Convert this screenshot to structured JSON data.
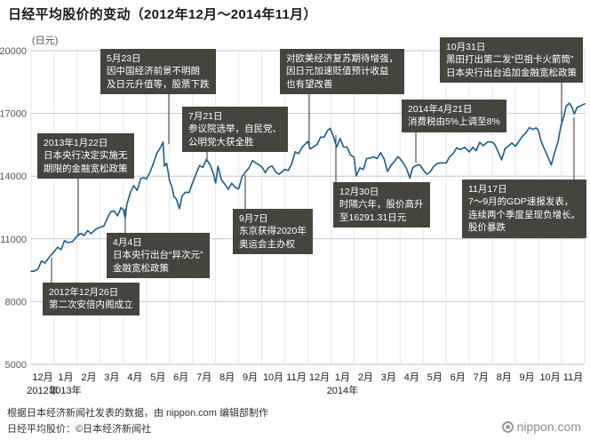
{
  "title": "日经平均股价的变动（2012年12月～2014年11月）",
  "colors": {
    "line": "#1b5c8c",
    "annotation_bg": "#45453e",
    "annotation_text": "#ffffff",
    "grid": "#c6c6c6",
    "subgrid": "#e7e7e7",
    "connector": "#333333",
    "axis_text": "#555555",
    "tick_text": "#1a1a1a",
    "title_text": "#1a1a1a"
  },
  "footer": {
    "source_line": "根据日本经济新闻社发表的数据，由 nippon.com 编辑部制作",
    "copyright_line": "日经平均股价：©日本经济新闻社",
    "logo_text": "nippon.com"
  },
  "annotations": [
    {
      "id": "abe-cabinet",
      "lines": [
        "2012年12月26日",
        "第二次安倍内阁成立"
      ]
    },
    {
      "id": "boj-unlimited-easing",
      "lines": [
        "2013年1月22日",
        "日本央行决定实施无",
        "期限的金融宽松政策"
      ]
    },
    {
      "id": "boj-dimension-easing",
      "lines": [
        "4月4日",
        "日本央行出台“异次元”",
        "金融宽松政策"
      ]
    },
    {
      "id": "may23-drop",
      "lines": [
        "5月23日",
        "因中国经济前景不明朗",
        "及日元升值等，股票下跌"
      ]
    },
    {
      "id": "upper-house-election",
      "lines": [
        "7月21日",
        "参议院选举，自民党、",
        "公明党大获全胜"
      ]
    },
    {
      "id": "tokyo-olympics",
      "lines": [
        "9月7日",
        "东京获得2020年",
        "奥运会主办权"
      ]
    },
    {
      "id": "yen-depreciation",
      "lines": [
        "对欧美经济复苏期待增强，",
        "因日元加速贬值预计收益",
        "也有望改善"
      ]
    },
    {
      "id": "dec30-high",
      "lines": [
        "12月30日",
        "时隔六年，股价高升",
        "至16291.31日元"
      ]
    },
    {
      "id": "consumption-tax",
      "lines": [
        "2014年4月21日",
        "消费税由5%上调至8%"
      ]
    },
    {
      "id": "bazooka2",
      "lines": [
        "10月31日",
        "黑田打出第二发“巴祖卡火箭筒”",
        "日本央行出台追加金融宽松政策"
      ]
    },
    {
      "id": "gdp-drop",
      "lines": [
        "11月17日",
        "7～9月的GDP速报发表，",
        "连续两个季度呈现负增长。",
        "股价暴跌"
      ]
    }
  ],
  "chart_data": {
    "type": "line",
    "title": "日经平均股价的变动（2012年12月～2014年11月）",
    "unit_label": "(日元)",
    "ylabel": "日元",
    "ylim": [
      5000,
      20000
    ],
    "yticks": [
      5000,
      8000,
      11000,
      14000,
      17000,
      20000
    ],
    "x_note": "month offset: 0 = 2012年12月初, 24 = 2014年11月末",
    "x_months": [
      "12月",
      "1月",
      "2月",
      "3月",
      "4月",
      "5月",
      "6月",
      "7月",
      "8月",
      "9月",
      "10月",
      "11月",
      "12月",
      "1月",
      "2月",
      "3月",
      "4月",
      "5月",
      "6月",
      "7月",
      "8月",
      "9月",
      "10月",
      "11月"
    ],
    "year_markers": [
      {
        "label": "2012年",
        "month_index": 0
      },
      {
        "label": "2013年",
        "month_index": 1
      },
      {
        "label": "2014年",
        "month_index": 13
      }
    ],
    "series": [
      {
        "name": "日经平均股价",
        "color": "#1b5c8c",
        "points": [
          [
            0,
            9450
          ],
          [
            0.15,
            9458
          ],
          [
            0.3,
            9560
          ],
          [
            0.45,
            9940
          ],
          [
            0.6,
            9840
          ],
          [
            0.75,
            10080
          ],
          [
            0.87,
            10230
          ],
          [
            1,
            10395
          ],
          [
            1.15,
            10600
          ],
          [
            1.3,
            10486
          ],
          [
            1.45,
            10913
          ],
          [
            1.6,
            10820
          ],
          [
            1.8,
            10870
          ],
          [
            2,
            11139
          ],
          [
            2.15,
            11260
          ],
          [
            2.3,
            11160
          ],
          [
            2.45,
            11400
          ],
          [
            2.6,
            11250
          ],
          [
            2.8,
            11460
          ],
          [
            3,
            11559
          ],
          [
            3.15,
            11606
          ],
          [
            3.3,
            11980
          ],
          [
            3.45,
            12300
          ],
          [
            3.6,
            12338
          ],
          [
            3.75,
            12100
          ],
          [
            3.9,
            12490
          ],
          [
            4,
            12398
          ],
          [
            4.08,
            12003
          ],
          [
            4.15,
            12634
          ],
          [
            4.3,
            13200
          ],
          [
            4.45,
            13550
          ],
          [
            4.6,
            13316
          ],
          [
            4.75,
            13884
          ],
          [
            4.9,
            13926
          ],
          [
            5,
            13860
          ],
          [
            5.15,
            14180
          ],
          [
            5.3,
            14607
          ],
          [
            5.45,
            15096
          ],
          [
            5.6,
            15354
          ],
          [
            5.72,
            15627
          ],
          [
            5.78,
            14483
          ],
          [
            5.88,
            14612
          ],
          [
            6,
            13775
          ],
          [
            6.1,
            13515
          ],
          [
            6.2,
            13014
          ],
          [
            6.3,
            12904
          ],
          [
            6.43,
            12445
          ],
          [
            6.55,
            13057
          ],
          [
            6.7,
            13230
          ],
          [
            6.85,
            13213
          ],
          [
            7,
            13677
          ],
          [
            7.15,
            14098
          ],
          [
            7.3,
            14506
          ],
          [
            7.45,
            14416
          ],
          [
            7.6,
            14808
          ],
          [
            7.75,
            14562
          ],
          [
            7.9,
            14130
          ],
          [
            8,
            13668
          ],
          [
            8.1,
            14466
          ],
          [
            8.25,
            13825
          ],
          [
            8.4,
            13615
          ],
          [
            8.55,
            13365
          ],
          [
            8.7,
            13660
          ],
          [
            8.85,
            13459
          ],
          [
            9,
            13389
          ],
          [
            9.15,
            13978
          ],
          [
            9.3,
            14205
          ],
          [
            9.45,
            14404
          ],
          [
            9.6,
            14742
          ],
          [
            9.75,
            14620
          ],
          [
            10,
            14456
          ],
          [
            10.15,
            14170
          ],
          [
            10.3,
            14426
          ],
          [
            10.45,
            14486
          ],
          [
            10.6,
            14202
          ],
          [
            10.75,
            14088
          ],
          [
            11,
            14328
          ],
          [
            11.15,
            14269
          ],
          [
            11.3,
            14588
          ],
          [
            11.45,
            15165
          ],
          [
            11.6,
            15077
          ],
          [
            11.75,
            15381
          ],
          [
            12,
            15662
          ],
          [
            12.1,
            15300
          ],
          [
            12.25,
            15403
          ],
          [
            12.4,
            15515
          ],
          [
            12.55,
            15870
          ],
          [
            12.7,
            15859
          ],
          [
            12.85,
            16174
          ],
          [
            12.97,
            16291
          ],
          [
            13.1,
            15908
          ],
          [
            13.25,
            15392
          ],
          [
            13.4,
            15796
          ],
          [
            13.55,
            15392
          ],
          [
            13.7,
            15384
          ],
          [
            13.85,
            15007
          ],
          [
            14,
            14914
          ],
          [
            14.1,
            14009
          ],
          [
            14.25,
            14400
          ],
          [
            14.4,
            14313
          ],
          [
            14.55,
            14843
          ],
          [
            14.7,
            14865
          ],
          [
            14.85,
            14924
          ],
          [
            15,
            14841
          ],
          [
            15.15,
            15120
          ],
          [
            15.3,
            14830
          ],
          [
            15.45,
            14224
          ],
          [
            15.6,
            14504
          ],
          [
            15.75,
            14696
          ],
          [
            15.9,
            14928
          ],
          [
            16,
            14828
          ],
          [
            16.15,
            14606
          ],
          [
            16.3,
            14300
          ],
          [
            16.42,
            13910
          ],
          [
            16.55,
            14417
          ],
          [
            16.7,
            14512
          ],
          [
            16.85,
            14546
          ],
          [
            17,
            14304
          ],
          [
            17.15,
            14088
          ],
          [
            17.3,
            14199
          ],
          [
            17.45,
            14462
          ],
          [
            17.6,
            14602
          ],
          [
            17.75,
            14634
          ],
          [
            18,
            14632
          ],
          [
            18.15,
            14935
          ],
          [
            18.3,
            15069
          ],
          [
            18.45,
            15361
          ],
          [
            18.6,
            15266
          ],
          [
            18.8,
            15376
          ],
          [
            19,
            15162
          ],
          [
            19.15,
            15379
          ],
          [
            19.3,
            15216
          ],
          [
            19.45,
            15618
          ],
          [
            19.6,
            15457
          ],
          [
            19.8,
            15646
          ],
          [
            20,
            15621
          ],
          [
            20.1,
            15523
          ],
          [
            20.25,
            15161
          ],
          [
            20.4,
            14778
          ],
          [
            20.55,
            15318
          ],
          [
            20.7,
            15449
          ],
          [
            20.85,
            15586
          ],
          [
            21,
            15425
          ],
          [
            21.15,
            15669
          ],
          [
            21.3,
            15909
          ],
          [
            21.45,
            16067
          ],
          [
            21.6,
            16321
          ],
          [
            21.75,
            16229
          ],
          [
            21.9,
            16310
          ],
          [
            22,
            16174
          ],
          [
            22.1,
            15709
          ],
          [
            22.25,
            15300
          ],
          [
            22.4,
            14937
          ],
          [
            22.55,
            14532
          ],
          [
            22.7,
            15139
          ],
          [
            22.85,
            15658
          ],
          [
            22.97,
            16414
          ],
          [
            23.1,
            16862
          ],
          [
            23.2,
            17344
          ],
          [
            23.33,
            17490
          ],
          [
            23.45,
            17300
          ],
          [
            23.55,
            16973
          ],
          [
            23.68,
            17300
          ],
          [
            23.82,
            17358
          ],
          [
            24,
            17460
          ]
        ]
      }
    ]
  }
}
